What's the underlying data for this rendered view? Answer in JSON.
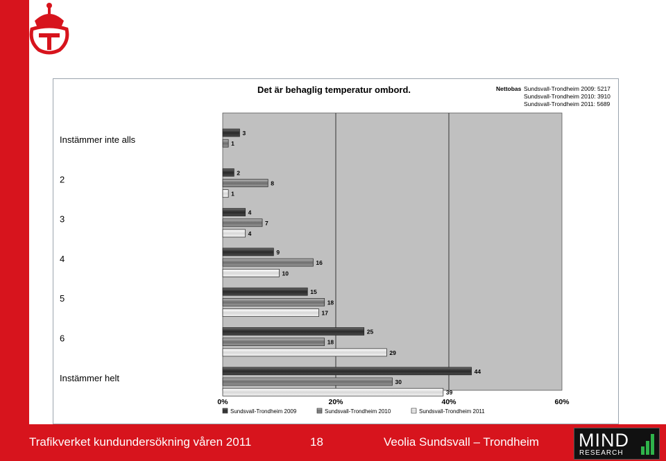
{
  "footer": {
    "left_text": "Trafikverket kundundersökning våren 2011",
    "page_number": "18",
    "right_text": "Veolia Sundsvall – Trondheim"
  },
  "brand": {
    "mind": "MIND",
    "research": "RESEARCH",
    "accent_color": "#d7141d"
  },
  "nettobas": {
    "label": "Nettobas",
    "lines": [
      "Sundsvall-Trondheim 2009: 5217",
      "Sundsvall-Trondheim 2010: 3910",
      "Sundsvall-Trondheim 2011: 5689"
    ]
  },
  "chart_data": {
    "type": "bar",
    "orientation": "horizontal",
    "title": "Det är behaglig temperatur ombord.",
    "categories": [
      "Instämmer inte alls",
      "2",
      "3",
      "4",
      "5",
      "6",
      "Instämmer helt"
    ],
    "series": [
      {
        "name": "Sundsvall-Trondheim 2009",
        "values": [
          3,
          2,
          4,
          9,
          15,
          25,
          44
        ],
        "color": "#3a3a3a"
      },
      {
        "name": "Sundsvall-Trondheim 2010",
        "values": [
          1,
          8,
          7,
          16,
          18,
          18,
          30
        ],
        "color": "#8c8c8c"
      },
      {
        "name": "Sundsvall-Trondheim 2011",
        "values": [
          null,
          1,
          4,
          10,
          17,
          29,
          39
        ],
        "color": "#f0f0f0"
      }
    ],
    "x_ticks": [
      "0%",
      "20%",
      "40%",
      "60%"
    ],
    "xlim": [
      0,
      60
    ],
    "grid": true,
    "legend_position": "bottom"
  }
}
